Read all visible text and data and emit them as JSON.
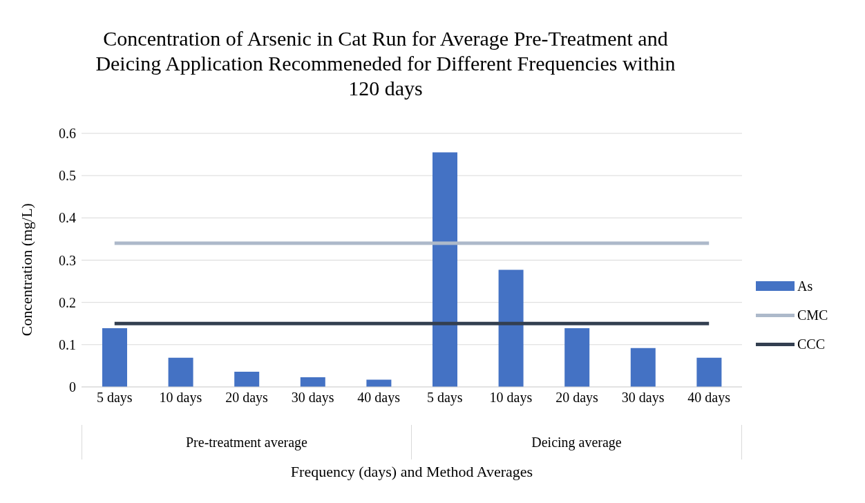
{
  "chart_data": {
    "type": "bar",
    "title": "Concentration of Arsenic in Cat Run for Average Pre-Treatment and Deicing Application Recommeneded for Different Frequencies within 120 days",
    "xlabel": "Frequency (days) and Method Averages",
    "ylabel": "Concentration (mg/L)",
    "categories": [
      "5 days",
      "10 days",
      "20 days",
      "30 days",
      "40 days",
      "5 days",
      "10 days",
      "20 days",
      "30 days",
      "40 days"
    ],
    "annotations": [
      "Pre-treatment average",
      "Deicing average"
    ],
    "series": [
      {
        "name": "As",
        "color": "#4472c4",
        "values": [
          0.139,
          0.069,
          0.036,
          0.023,
          0.017,
          0.555,
          0.277,
          0.139,
          0.092,
          0.069
        ]
      },
      {
        "name": "CMC",
        "type": "line",
        "color": "#adb9ca",
        "values": [
          0.34,
          0.34,
          0.34,
          0.34,
          0.34,
          0.34,
          0.34,
          0.34,
          0.34,
          0.34
        ]
      },
      {
        "name": "CCC",
        "type": "line",
        "color": "#333f50",
        "values": [
          0.15,
          0.15,
          0.15,
          0.15,
          0.15,
          0.15,
          0.15,
          0.15,
          0.15,
          0.15
        ]
      }
    ],
    "ylim": [
      0,
      0.6
    ],
    "yticks": [
      0,
      0.1,
      0.2,
      0.3,
      0.4,
      0.5,
      0.6
    ],
    "grid": "y",
    "legend": "right",
    "marker": "none",
    "line_style": "solid"
  }
}
